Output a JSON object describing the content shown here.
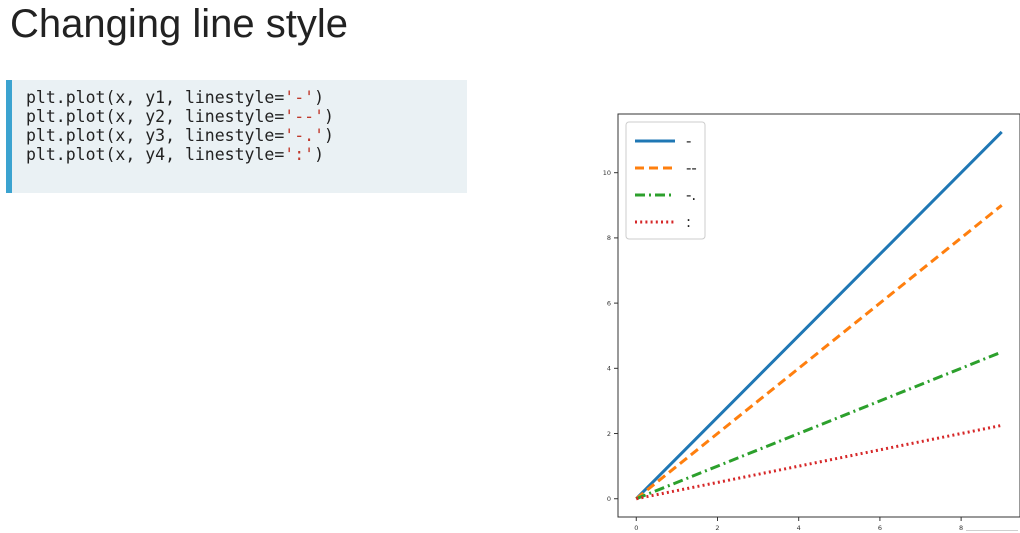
{
  "slide": {
    "title": "Changing line style"
  },
  "code": {
    "lines": [
      {
        "prefix": "plt.plot(x, y1, linestyle=",
        "arg": "'-'",
        "suffix": ")"
      },
      {
        "prefix": "plt.plot(x, y2, linestyle=",
        "arg": "'--'",
        "suffix": ")"
      },
      {
        "prefix": "plt.plot(x, y3, linestyle=",
        "arg": "'-.'",
        "suffix": ")"
      },
      {
        "prefix": "plt.plot(x, y4, linestyle=",
        "arg": "':'",
        "suffix": ")"
      }
    ],
    "colors": {
      "text": "#222222",
      "string": "#c0392b",
      "background": "#eaf1f4",
      "accent_bar": "#3ba3d0"
    }
  },
  "chart_data": {
    "type": "line",
    "title": "",
    "xlabel": "",
    "ylabel": "",
    "xlim": [
      -0.45,
      9.45
    ],
    "ylim": [
      -0.56,
      11.8
    ],
    "xticks": [
      0,
      2,
      4,
      6,
      8
    ],
    "yticks": [
      0,
      2,
      4,
      6,
      8,
      10
    ],
    "grid": false,
    "legend_position": "top-left",
    "series": [
      {
        "name": "-",
        "linestyle": "solid",
        "color": "#1f77b4",
        "x": [
          0,
          9
        ],
        "y": [
          0,
          11.25
        ]
      },
      {
        "name": "--",
        "linestyle": "dashed",
        "color": "#ff7f0e",
        "x": [
          0,
          9
        ],
        "y": [
          0,
          9
        ]
      },
      {
        "name": "-.",
        "linestyle": "dashdot",
        "color": "#2ca02c",
        "x": [
          0,
          9
        ],
        "y": [
          0,
          4.5
        ]
      },
      {
        "name": ":",
        "linestyle": "dotted",
        "color": "#d62728",
        "x": [
          0,
          9
        ],
        "y": [
          0,
          2.25
        ]
      }
    ]
  }
}
